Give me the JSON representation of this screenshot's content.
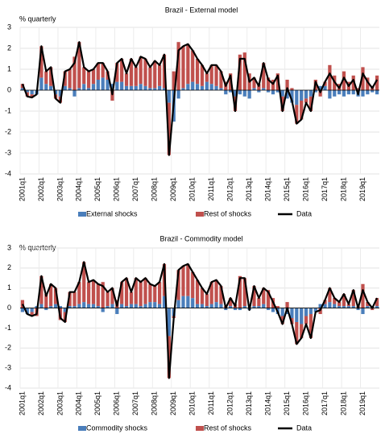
{
  "chart_data": [
    {
      "type": "combo",
      "title": "Brazil - External model",
      "y_label": "% quarterly",
      "categories": [
        "2001q1",
        null,
        null,
        null,
        "2002q1",
        null,
        null,
        null,
        "2003q1",
        null,
        null,
        null,
        "2004q1",
        null,
        null,
        null,
        "2005q1",
        null,
        null,
        null,
        "2006q1",
        null,
        null,
        null,
        "2007q1",
        null,
        null,
        null,
        "2008q1",
        null,
        null,
        null,
        "2009q1",
        null,
        null,
        null,
        "2010q1",
        null,
        null,
        null,
        "2011q1",
        null,
        null,
        null,
        "2012q1",
        null,
        null,
        null,
        "2013q1",
        null,
        null,
        null,
        "2014q1",
        null,
        null,
        null,
        "2015q1",
        null,
        null,
        null,
        "2016q1",
        null,
        null,
        null,
        "2017q1",
        null,
        null,
        null,
        "2018q1",
        null,
        null,
        null,
        "2019q1",
        null,
        null,
        null
      ],
      "ylim": [
        -4,
        3
      ],
      "yticks": [
        -4,
        -3,
        -2,
        -1,
        0,
        1,
        2,
        3
      ],
      "grid": true,
      "series": [
        {
          "name": "External shocks",
          "type": "bar",
          "color": "#4a7ebb",
          "values": [
            0.1,
            -0.1,
            -0.2,
            -0.2,
            0.6,
            0.3,
            0.2,
            -0.2,
            -0.3,
            0.2,
            0.1,
            -0.3,
            0.1,
            0.3,
            0.1,
            0.3,
            0.5,
            0.6,
            0.5,
            0.3,
            0.4,
            0.4,
            0.2,
            0.2,
            0.2,
            0.3,
            0.2,
            0.1,
            0.1,
            0.2,
            0.1,
            -0.6,
            -1.5,
            -0.4,
            0.1,
            0.3,
            0.4,
            0.3,
            0.2,
            0.4,
            0.3,
            0.2,
            0.1,
            -0.2,
            -0.1,
            -0.3,
            -0.2,
            -0.3,
            -0.4,
            0.1,
            -0.1,
            0.1,
            -0.1,
            -0.2,
            -0.1,
            -0.3,
            -0.4,
            -0.6,
            -0.7,
            -0.5,
            -0.4,
            -0.3,
            -0.1,
            0.2,
            0.2,
            -0.4,
            -0.3,
            -0.2,
            -0.3,
            -0.2,
            -0.2,
            -0.3,
            -0.3,
            -0.2,
            -0.1,
            -0.2
          ]
        },
        {
          "name": "Rest of shocks",
          "type": "bar",
          "color": "#c0504d",
          "values": [
            0.2,
            -0.2,
            -0.15,
            0,
            1.5,
            0.6,
            0.9,
            -0.2,
            -0.3,
            0.7,
            0.9,
            1.6,
            2.2,
            0.8,
            0.8,
            0.7,
            0.8,
            0.7,
            0.4,
            -0.5,
            0.9,
            1.1,
            0.6,
            1.3,
            0.9,
            1.3,
            1.3,
            1.0,
            1.3,
            1.0,
            1.6,
            -2.5,
            0.9,
            2.3,
            2.0,
            1.9,
            1.5,
            1.2,
            1.0,
            0.4,
            0.9,
            1.0,
            0.8,
            0.4,
            0.8,
            -0.7,
            1.7,
            1.8,
            0.8,
            0.5,
            0.3,
            1.2,
            0.6,
            0.5,
            0.8,
            -0.7,
            0.5,
            0.1,
            -0.9,
            -0.9,
            -0.2,
            -0.7,
            0.5,
            -0.3,
            0.2,
            1.2,
            0.7,
            0.3,
            0.9,
            0.4,
            0.7,
            0.1,
            1.1,
            0.6,
            0.2,
            0.7
          ]
        },
        {
          "name": "Data",
          "type": "line",
          "color": "#000000",
          "values": [
            0.3,
            -0.3,
            -0.35,
            -0.2,
            2.1,
            0.9,
            1.1,
            -0.4,
            -0.6,
            0.9,
            1.0,
            1.3,
            2.3,
            1.1,
            0.9,
            1.0,
            1.3,
            1.3,
            0.9,
            -0.2,
            1.3,
            1.5,
            0.8,
            1.5,
            1.1,
            1.6,
            1.5,
            1.1,
            1.4,
            1.2,
            1.7,
            -3.1,
            -0.6,
            1.9,
            2.1,
            2.2,
            1.9,
            1.5,
            1.2,
            0.8,
            1.2,
            1.2,
            0.9,
            0.2,
            0.7,
            -1.0,
            1.5,
            1.5,
            0.4,
            0.6,
            0.2,
            1.3,
            0.5,
            0.3,
            0.7,
            -1.0,
            0.1,
            -0.5,
            -1.6,
            -1.4,
            -0.6,
            -1.0,
            0.4,
            -0.1,
            0.4,
            0.8,
            0.4,
            0.1,
            0.6,
            0.2,
            0.5,
            -0.2,
            0.8,
            0.4,
            0.1,
            0.5
          ]
        }
      ]
    },
    {
      "type": "combo",
      "title": "Brazil - Commodity model",
      "y_label": "% quarterly",
      "categories": [
        "2001q1",
        null,
        null,
        null,
        "2002q1",
        null,
        null,
        null,
        "2003q1",
        null,
        null,
        null,
        "2004q1",
        null,
        null,
        null,
        "2005q1",
        null,
        null,
        null,
        "2006q1",
        null,
        null,
        null,
        "2007q1",
        null,
        null,
        null,
        "2008q1",
        null,
        null,
        null,
        "2009q1",
        null,
        null,
        null,
        "2010q1",
        null,
        null,
        null,
        "2011q1",
        null,
        null,
        null,
        "2012q1",
        null,
        null,
        null,
        "2013q1",
        null,
        null,
        null,
        "2014q1",
        null,
        null,
        null,
        "2015q1",
        null,
        null,
        null,
        "2016q1",
        null,
        null,
        null,
        "2017q1",
        null,
        null,
        null,
        "2018q1",
        null,
        null,
        null,
        "2019q1",
        null,
        null,
        null
      ],
      "ylim": [
        -4,
        3
      ],
      "yticks": [
        -4,
        -3,
        -2,
        -1,
        0,
        1,
        2,
        3
      ],
      "grid": true,
      "series": [
        {
          "name": "Commodity shocks",
          "type": "bar",
          "color": "#4a7ebb",
          "values": [
            -0.2,
            -0.3,
            -0.2,
            0.1,
            0.2,
            -0.1,
            0.1,
            0.2,
            0.1,
            -0.2,
            0.1,
            0.1,
            0.2,
            0.3,
            0.2,
            0.2,
            0.1,
            -0.2,
            0.1,
            0.2,
            -0.3,
            0.2,
            0.1,
            0.2,
            0.2,
            0.1,
            0.2,
            0.3,
            0.3,
            0.2,
            0.6,
            -1.4,
            -0.4,
            0.4,
            0.6,
            0.6,
            0.5,
            0.2,
            0.2,
            0.1,
            0.2,
            0.3,
            0.2,
            -0.1,
            0.1,
            -0.1,
            -0.1,
            0.1,
            -0.1,
            0.1,
            0.1,
            0.2,
            -0.1,
            -0.2,
            -0.3,
            -0.4,
            -0.3,
            -0.5,
            -0.7,
            -0.8,
            -0.4,
            -0.3,
            -0.2,
            0.2,
            0.2,
            0.3,
            0.2,
            0.1,
            0.1,
            0.1,
            0.1,
            -0.1,
            -0.3,
            0.1,
            0.1,
            0.1
          ]
        },
        {
          "name": "Rest of shocks",
          "type": "bar",
          "color": "#c0504d",
          "values": [
            0.4,
            0,
            -0.2,
            -0.4,
            1.4,
            0.7,
            1.1,
            0.8,
            -0.6,
            -0.5,
            0.7,
            0.7,
            1.1,
            2.0,
            1.1,
            1.2,
            1.1,
            1.3,
            0.7,
            0.8,
            0.4,
            1.1,
            1.4,
            0.6,
            1.3,
            1.2,
            1.3,
            0.9,
            0.8,
            1.1,
            1.6,
            -2.1,
            -0.1,
            1.5,
            1.5,
            1.6,
            1.3,
            1.2,
            0.8,
            0.6,
            1.1,
            1.1,
            0.9,
            0.1,
            0.4,
            0.2,
            1.6,
            1.4,
            0,
            1.0,
            0.4,
            0.8,
            0.9,
            0.5,
            0.1,
            -0.4,
            0.3,
            -0.3,
            -1.1,
            -0.7,
            -0.4,
            -1.2,
            0,
            -0.3,
            0.2,
            0.7,
            0.3,
            0.2,
            0.6,
            0.1,
            0.8,
            0.1,
            1.2,
            0.2,
            -0.1,
            0.4
          ]
        },
        {
          "name": "Data",
          "type": "line",
          "color": "#000000",
          "values": [
            0.2,
            -0.3,
            -0.4,
            -0.3,
            1.6,
            0.6,
            1.2,
            1.0,
            -0.5,
            -0.7,
            0.8,
            0.8,
            1.3,
            2.3,
            1.3,
            1.4,
            1.2,
            1.1,
            0.8,
            1.0,
            0.1,
            1.3,
            1.5,
            0.8,
            1.5,
            1.3,
            1.5,
            1.2,
            1.1,
            1.3,
            2.2,
            -3.5,
            -0.5,
            1.9,
            2.1,
            2.2,
            1.8,
            1.4,
            1.0,
            0.7,
            1.3,
            1.4,
            1.1,
            0,
            0.5,
            0.1,
            1.5,
            1.5,
            -0.1,
            1.1,
            0.5,
            1.0,
            0.8,
            0.3,
            -0.2,
            -0.8,
            0,
            -0.8,
            -1.8,
            -1.5,
            -0.8,
            -1.5,
            -0.2,
            -0.1,
            0.4,
            1.0,
            0.5,
            0.3,
            0.7,
            0.2,
            0.9,
            0,
            0.9,
            0.3,
            0,
            0.5
          ]
        }
      ]
    }
  ]
}
